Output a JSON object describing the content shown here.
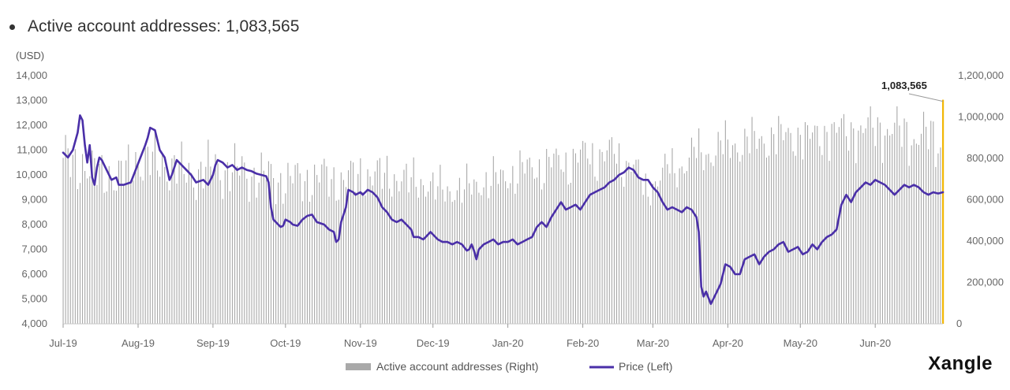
{
  "heading": {
    "label": "Active account addresses: 1,083,565"
  },
  "brand": "Xangle",
  "chart_data": {
    "type": "bar",
    "left_axis": {
      "unit": "(USD)",
      "min": 4000,
      "max": 14000,
      "ticks": [
        "4,000",
        "5,000",
        "6,000",
        "7,000",
        "8,000",
        "9,000",
        "10,000",
        "11,000",
        "12,000",
        "13,000",
        "14,000"
      ]
    },
    "right_axis": {
      "min": 0,
      "max": 1200000,
      "ticks": [
        "0",
        "200,000",
        "400,000",
        "600,000",
        "800,000",
        "1,000,000",
        "1,200,000"
      ]
    },
    "x_ticks": [
      "Jul-19",
      "Aug-19",
      "Sep-19",
      "Oct-19",
      "Nov-19",
      "Dec-19",
      "Jan-20",
      "Feb-20",
      "Mar-20",
      "Apr-20",
      "May-20",
      "Jun-20"
    ],
    "callout": {
      "label": "1,083,565",
      "value": 1083565
    },
    "legend": [
      "Active account addresses (Right)",
      "Price (Left)"
    ],
    "colors": {
      "bars": "#a9a9a9",
      "price": "#4a2fa8",
      "highlight": "#f2b705",
      "axis": "#888888"
    },
    "series": [
      {
        "name": "Active account addresses (Right)",
        "axis": "right",
        "points": [
          [
            0,
            810000
          ],
          [
            7,
            760000
          ],
          [
            15,
            730000
          ],
          [
            22,
            700000
          ],
          [
            31,
            790000
          ],
          [
            38,
            780000
          ],
          [
            45,
            760000
          ],
          [
            52,
            720000
          ],
          [
            62,
            750000
          ],
          [
            70,
            740000
          ],
          [
            80,
            720000
          ],
          [
            92,
            690000
          ],
          [
            100,
            700000
          ],
          [
            108,
            710000
          ],
          [
            115,
            690000
          ],
          [
            123,
            720000
          ],
          [
            131,
            720000
          ],
          [
            139,
            700000
          ],
          [
            146,
            690000
          ],
          [
            154,
            660000
          ],
          [
            160,
            640000
          ],
          [
            168,
            660000
          ],
          [
            176,
            690000
          ],
          [
            183,
            710000
          ],
          [
            190,
            740000
          ],
          [
            198,
            760000
          ],
          [
            206,
            780000
          ],
          [
            214,
            800000
          ],
          [
            220,
            820000
          ],
          [
            228,
            810000
          ],
          [
            236,
            770000
          ],
          [
            240,
            640000
          ],
          [
            246,
            710000
          ],
          [
            254,
            760000
          ],
          [
            262,
            820000
          ],
          [
            270,
            840000
          ],
          [
            278,
            870000
          ],
          [
            286,
            880000
          ],
          [
            294,
            900000
          ],
          [
            302,
            910000
          ],
          [
            310,
            900000
          ],
          [
            318,
            930000
          ],
          [
            326,
            930000
          ],
          [
            334,
            940000
          ],
          [
            341,
            940000
          ],
          [
            347,
            920000
          ],
          [
            357,
            900000
          ],
          [
            362,
            880000
          ]
        ]
      },
      {
        "name": "Price (Left)",
        "axis": "left",
        "points": [
          [
            0,
            10900
          ],
          [
            2,
            10700
          ],
          [
            4,
            11000
          ],
          [
            6,
            11700
          ],
          [
            7,
            12400
          ],
          [
            8,
            12200
          ],
          [
            9,
            11200
          ],
          [
            10,
            10500
          ],
          [
            11,
            11200
          ],
          [
            12,
            9900
          ],
          [
            13,
            9600
          ],
          [
            14,
            10300
          ],
          [
            15,
            10700
          ],
          [
            16,
            10600
          ],
          [
            18,
            10200
          ],
          [
            20,
            9800
          ],
          [
            22,
            9900
          ],
          [
            23,
            9600
          ],
          [
            25,
            9600
          ],
          [
            28,
            9700
          ],
          [
            30,
            10200
          ],
          [
            32,
            10700
          ],
          [
            34,
            11200
          ],
          [
            35,
            11500
          ],
          [
            36,
            11900
          ],
          [
            38,
            11800
          ],
          [
            40,
            11000
          ],
          [
            42,
            10700
          ],
          [
            44,
            9800
          ],
          [
            45,
            10000
          ],
          [
            47,
            10600
          ],
          [
            49,
            10400
          ],
          [
            51,
            10200
          ],
          [
            53,
            10000
          ],
          [
            55,
            9700
          ],
          [
            58,
            9800
          ],
          [
            60,
            9600
          ],
          [
            62,
            10000
          ],
          [
            63,
            10400
          ],
          [
            64,
            10600
          ],
          [
            66,
            10500
          ],
          [
            68,
            10300
          ],
          [
            70,
            10400
          ],
          [
            72,
            10200
          ],
          [
            74,
            10300
          ],
          [
            76,
            10200
          ],
          [
            78,
            10150
          ],
          [
            80,
            10050
          ],
          [
            82,
            10000
          ],
          [
            84,
            9950
          ],
          [
            85,
            9700
          ],
          [
            86,
            8700
          ],
          [
            87,
            8200
          ],
          [
            88,
            8100
          ],
          [
            89,
            8000
          ],
          [
            90,
            7900
          ],
          [
            91,
            7950
          ],
          [
            92,
            8200
          ],
          [
            94,
            8100
          ],
          [
            95,
            8000
          ],
          [
            97,
            7950
          ],
          [
            99,
            8200
          ],
          [
            101,
            8350
          ],
          [
            103,
            8400
          ],
          [
            105,
            8100
          ],
          [
            108,
            8000
          ],
          [
            110,
            7800
          ],
          [
            112,
            7700
          ],
          [
            113,
            7300
          ],
          [
            114,
            7400
          ],
          [
            115,
            8100
          ],
          [
            117,
            8700
          ],
          [
            118,
            9400
          ],
          [
            120,
            9300
          ],
          [
            121,
            9200
          ],
          [
            123,
            9300
          ],
          [
            124,
            9200
          ],
          [
            126,
            9400
          ],
          [
            128,
            9300
          ],
          [
            130,
            9100
          ],
          [
            131,
            8900
          ],
          [
            132,
            8700
          ],
          [
            134,
            8500
          ],
          [
            136,
            8200
          ],
          [
            138,
            8100
          ],
          [
            140,
            8200
          ],
          [
            142,
            8000
          ],
          [
            144,
            7800
          ],
          [
            145,
            7500
          ],
          [
            147,
            7500
          ],
          [
            149,
            7400
          ],
          [
            150,
            7500
          ],
          [
            152,
            7700
          ],
          [
            153,
            7600
          ],
          [
            155,
            7400
          ],
          [
            157,
            7300
          ],
          [
            159,
            7300
          ],
          [
            161,
            7200
          ],
          [
            163,
            7300
          ],
          [
            165,
            7200
          ],
          [
            167,
            6950
          ],
          [
            168,
            7000
          ],
          [
            169,
            7200
          ],
          [
            170,
            6950
          ],
          [
            171,
            6600
          ],
          [
            172,
            7000
          ],
          [
            174,
            7200
          ],
          [
            176,
            7300
          ],
          [
            178,
            7400
          ],
          [
            180,
            7200
          ],
          [
            182,
            7300
          ],
          [
            184,
            7300
          ],
          [
            186,
            7400
          ],
          [
            188,
            7200
          ],
          [
            190,
            7300
          ],
          [
            192,
            7400
          ],
          [
            194,
            7500
          ],
          [
            196,
            7900
          ],
          [
            198,
            8100
          ],
          [
            200,
            7900
          ],
          [
            202,
            8300
          ],
          [
            204,
            8600
          ],
          [
            206,
            8900
          ],
          [
            208,
            8600
          ],
          [
            210,
            8700
          ],
          [
            212,
            8800
          ],
          [
            214,
            8600
          ],
          [
            216,
            8900
          ],
          [
            218,
            9200
          ],
          [
            220,
            9300
          ],
          [
            222,
            9400
          ],
          [
            224,
            9500
          ],
          [
            226,
            9700
          ],
          [
            228,
            9800
          ],
          [
            230,
            10000
          ],
          [
            232,
            10100
          ],
          [
            234,
            10300
          ],
          [
            236,
            10200
          ],
          [
            238,
            9900
          ],
          [
            240,
            9800
          ],
          [
            242,
            9800
          ],
          [
            244,
            9500
          ],
          [
            246,
            9300
          ],
          [
            248,
            8900
          ],
          [
            250,
            8600
          ],
          [
            252,
            8700
          ],
          [
            254,
            8600
          ],
          [
            256,
            8500
          ],
          [
            258,
            8700
          ],
          [
            260,
            8600
          ],
          [
            262,
            8300
          ],
          [
            263,
            7700
          ],
          [
            264,
            5500
          ],
          [
            265,
            5100
          ],
          [
            266,
            5300
          ],
          [
            268,
            4800
          ],
          [
            270,
            5200
          ],
          [
            272,
            5600
          ],
          [
            274,
            6400
          ],
          [
            276,
            6300
          ],
          [
            278,
            6000
          ],
          [
            280,
            6000
          ],
          [
            282,
            6600
          ],
          [
            284,
            6700
          ],
          [
            286,
            6800
          ],
          [
            288,
            6400
          ],
          [
            290,
            6700
          ],
          [
            292,
            6900
          ],
          [
            294,
            7000
          ],
          [
            296,
            7200
          ],
          [
            298,
            7300
          ],
          [
            300,
            6900
          ],
          [
            302,
            7000
          ],
          [
            304,
            7100
          ],
          [
            306,
            6800
          ],
          [
            308,
            6900
          ],
          [
            310,
            7200
          ],
          [
            312,
            7000
          ],
          [
            314,
            7300
          ],
          [
            316,
            7500
          ],
          [
            318,
            7600
          ],
          [
            320,
            7800
          ],
          [
            322,
            8800
          ],
          [
            324,
            9200
          ],
          [
            326,
            8900
          ],
          [
            328,
            9300
          ],
          [
            330,
            9500
          ],
          [
            332,
            9700
          ],
          [
            334,
            9600
          ],
          [
            336,
            9800
          ],
          [
            338,
            9700
          ],
          [
            340,
            9600
          ],
          [
            342,
            9400
          ],
          [
            344,
            9200
          ],
          [
            346,
            9400
          ],
          [
            348,
            9600
          ],
          [
            350,
            9500
          ],
          [
            352,
            9600
          ],
          [
            354,
            9500
          ],
          [
            356,
            9300
          ],
          [
            358,
            9200
          ],
          [
            360,
            9300
          ],
          [
            362,
            9250
          ],
          [
            364,
            9300
          ]
        ]
      }
    ]
  }
}
